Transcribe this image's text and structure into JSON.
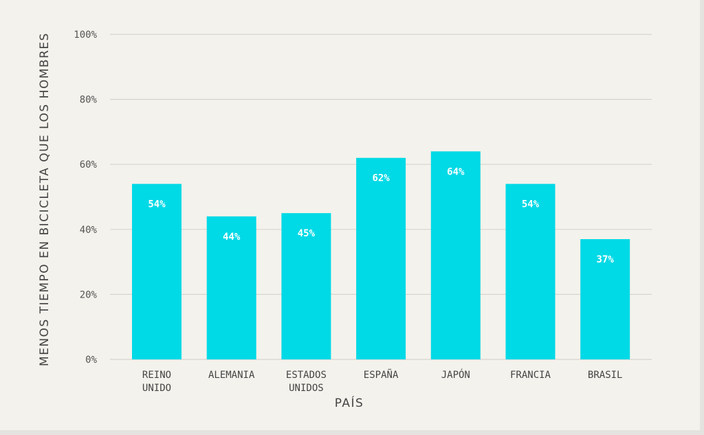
{
  "chart_data": {
    "type": "bar",
    "categories": [
      [
        "REINO",
        "UNIDO"
      ],
      [
        "ALEMANIA"
      ],
      [
        "ESTADOS",
        "UNIDOS"
      ],
      [
        "ESPAÑA"
      ],
      [
        "JAPÓN"
      ],
      [
        "FRANCIA"
      ],
      [
        "BRASIL"
      ]
    ],
    "values": [
      54,
      44,
      45,
      62,
      64,
      54,
      37
    ],
    "value_labels": [
      "54%",
      "44%",
      "45%",
      "62%",
      "64%",
      "54%",
      "37%"
    ],
    "xlabel": "PAÍS",
    "ylabel": "MENOS TIEMPO EN BICICLETA QUE LOS HOMBRES",
    "ylim": [
      0,
      100
    ],
    "yticks": [
      0,
      20,
      40,
      60,
      80,
      100
    ],
    "ytick_labels": [
      "0%",
      "20%",
      "40%",
      "60%",
      "80%",
      "100%"
    ],
    "grid": true,
    "colors": {
      "bar": "#00d9e6",
      "grid": "#d6d4ce",
      "background": "#f4f2ec"
    }
  }
}
